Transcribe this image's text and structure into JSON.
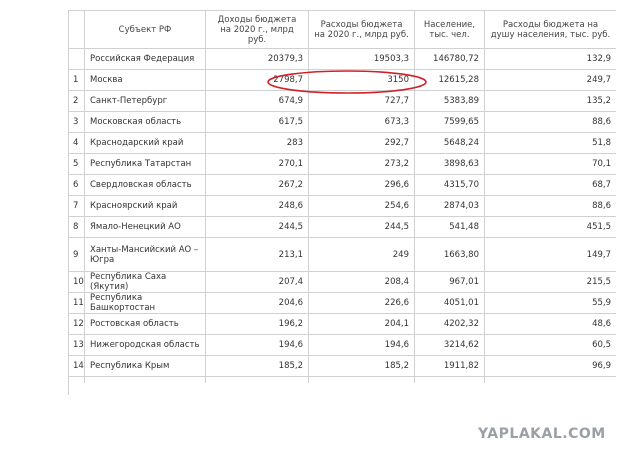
{
  "table": {
    "header": [
      "Субъект РФ",
      "Доходы бюджета на 2020 г., млрд руб.",
      "Расходы бюджета на 2020 г., млрд руб.",
      "Население, тыс. чел.",
      "Расходы бюджета на душу населения, тыс. руб."
    ],
    "total_row": [
      "Российская Федерация",
      "20379,3",
      "19503,3",
      "146780,72",
      "132,9"
    ],
    "rows": [
      [
        "1",
        "Москва",
        "2798,7",
        "3150",
        "12615,28",
        "249,7"
      ],
      [
        "2",
        "Санкт-Петербург",
        "674,9",
        "727,7",
        "5383,89",
        "135,2"
      ],
      [
        "3",
        "Московская область",
        "617,5",
        "673,3",
        "7599,65",
        "88,6"
      ],
      [
        "4",
        "Краснодарский край",
        "283",
        "292,7",
        "5648,24",
        "51,8"
      ],
      [
        "5",
        "Республика Татарстан",
        "270,1",
        "273,2",
        "3898,63",
        "70,1"
      ],
      [
        "6",
        "Свердловская область",
        "267,2",
        "296,6",
        "4315,70",
        "68,7"
      ],
      [
        "7",
        "Красноярский край",
        "248,6",
        "254,6",
        "2874,03",
        "88,6"
      ],
      [
        "8",
        "Ямало-Ненецкий АО",
        "244,5",
        "244,5",
        "541,48",
        "451,5"
      ],
      [
        "9",
        "Ханты-Мансийский АО – Югра",
        "213,1",
        "249",
        "1663,80",
        "149,7"
      ],
      [
        "10",
        "Республика Саха (Якутия)",
        "207,4",
        "208,4",
        "967,01",
        "215,5"
      ],
      [
        "11",
        "Республика Башкортостан",
        "204,6",
        "226,6",
        "4051,01",
        "55,9"
      ],
      [
        "12",
        "Ростовская область",
        "196,2",
        "204,1",
        "4202,32",
        "48,6"
      ],
      [
        "13",
        "Нижегородская область",
        "194,6",
        "194,6",
        "3214,62",
        "60,5"
      ],
      [
        "14",
        "Республика Крым",
        "185,2",
        "185,2",
        "1911,82",
        "96,9"
      ]
    ]
  },
  "watermark": "YAPLAKAL.COM"
}
